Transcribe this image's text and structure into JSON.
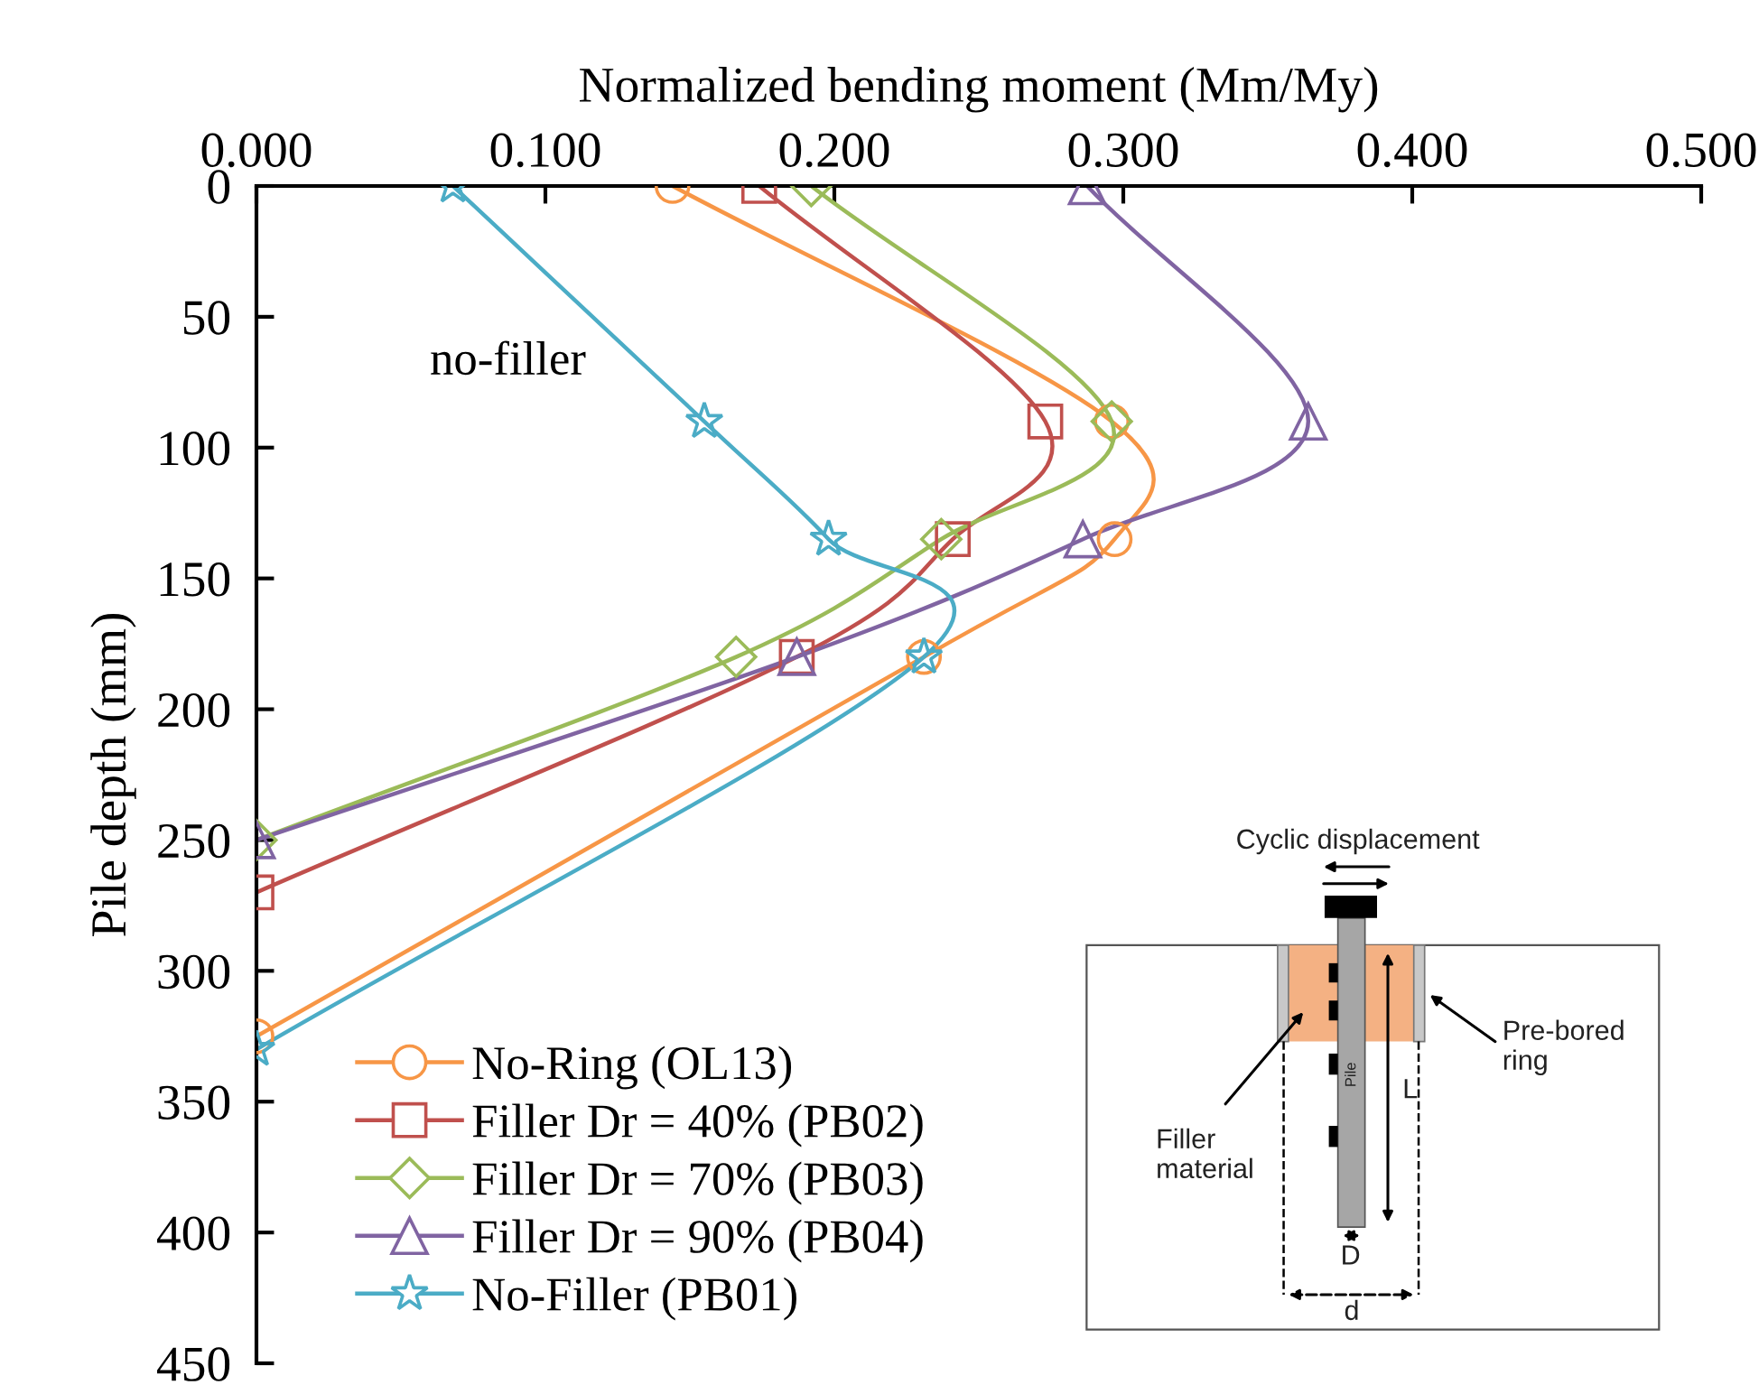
{
  "chart_data": {
    "type": "line",
    "xlabel": "Normalized bending moment (Mm/My)",
    "ylabel": "Pile depth (mm)",
    "xlim": [
      0,
      0.5
    ],
    "xticks": [
      {
        "value": 0,
        "label": "0.000"
      },
      {
        "value": 0.1,
        "label": "0.100"
      },
      {
        "value": 0.2,
        "label": "0.200"
      },
      {
        "value": 0.3,
        "label": "0.300"
      },
      {
        "value": 0.4,
        "label": "0.400"
      },
      {
        "value": 0.5,
        "label": "0.500"
      }
    ],
    "ylim": [
      450,
      0
    ],
    "yticks": [
      0,
      50,
      100,
      150,
      200,
      250,
      300,
      350,
      400,
      450
    ],
    "legend": "bottom left",
    "series": [
      {
        "name": "No-Ring (OL13)",
        "color": "#f79646",
        "marker": "circle",
        "x": [
          0.144,
          0.296,
          0.297,
          0.231,
          0
        ],
        "values": [
          0,
          90,
          135,
          180,
          325
        ]
      },
      {
        "name": "Filler Dr = 40% (PB02)",
        "color": "#c0504d",
        "marker": "square",
        "x": [
          0.174,
          0.273,
          0.241,
          0.187,
          0
        ],
        "values": [
          0,
          90,
          135,
          180,
          270
        ]
      },
      {
        "name": "Filler Dr = 70% (PB03)",
        "color": "#9bbb59",
        "marker": "diamond",
        "x": [
          0.192,
          0.296,
          0.237,
          0.166,
          0
        ],
        "values": [
          0,
          90,
          135,
          180,
          250
        ]
      },
      {
        "name": "Filler Dr = 90% (PB04)",
        "color": "#8064a2",
        "marker": "triangle",
        "x": [
          0.2875,
          0.364,
          0.286,
          0.187,
          0
        ],
        "values": [
          0,
          90,
          135,
          180,
          250
        ]
      },
      {
        "name": "No-Filler (PB01)",
        "color": "#4bacc6",
        "marker": "star",
        "x": [
          0.068,
          0.155,
          0.198,
          0.231,
          0
        ],
        "values": [
          0,
          90,
          135,
          180,
          330
        ]
      }
    ],
    "annotations": [
      "no-filler",
      "Cyclic displacement",
      "Pre-bored\nring",
      "Filler\nmaterial",
      "Pile",
      "L",
      "D",
      "d"
    ]
  }
}
